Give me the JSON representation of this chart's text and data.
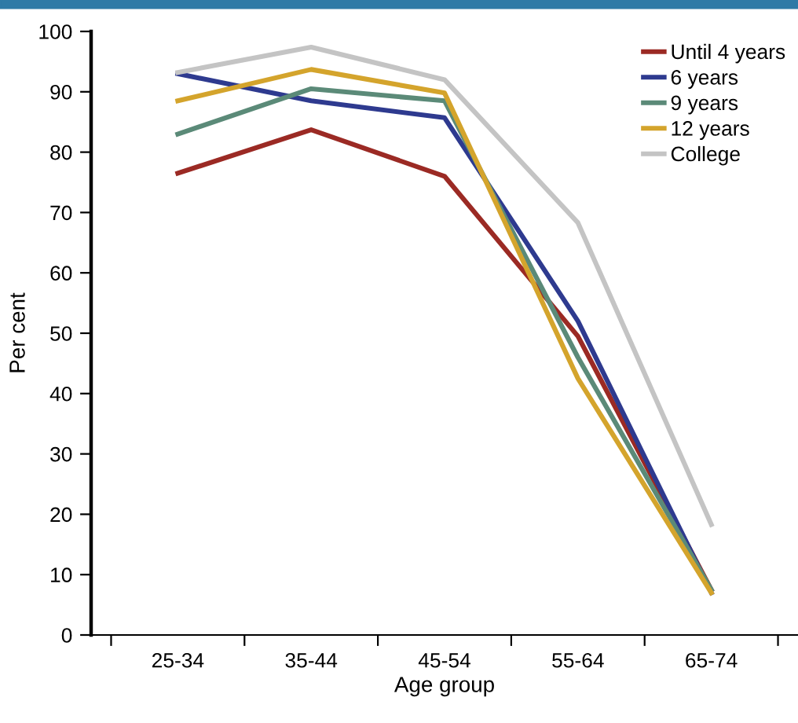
{
  "chart_data": {
    "type": "line",
    "xlabel": "Age group",
    "ylabel": "Per cent",
    "categories": [
      "25-34",
      "35-44",
      "45-54",
      "55-64",
      "65-74"
    ],
    "series": [
      {
        "name": "Until 4 years",
        "color": "#9b2a24",
        "values": [
          76.5,
          83.7,
          76,
          49.5,
          7.5
        ]
      },
      {
        "name": "6 years",
        "color": "#2e3a8f",
        "values": [
          93,
          88.5,
          85.7,
          52,
          7
        ]
      },
      {
        "name": "9 years",
        "color": "#5b8a78",
        "values": [
          83,
          90.5,
          88.5,
          46,
          7.5
        ]
      },
      {
        "name": "12 years",
        "color": "#d4a42c",
        "values": [
          88.5,
          93.7,
          89.8,
          42.5,
          7
        ]
      },
      {
        "name": "College",
        "color": "#c4c4c4",
        "values": [
          93.2,
          97.4,
          92,
          68.3,
          18.3
        ]
      }
    ],
    "ylim": [
      0,
      100
    ],
    "yticks": [
      0,
      10,
      20,
      30,
      40,
      50,
      60,
      70,
      80,
      90,
      100
    ],
    "legend": "top right",
    "grid": false,
    "marker": "none",
    "line_style": "solid"
  }
}
